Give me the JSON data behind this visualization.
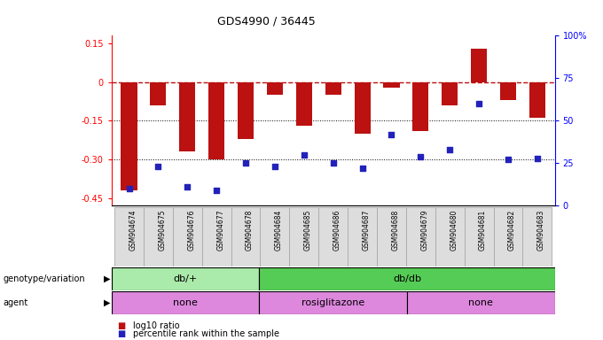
{
  "title": "GDS4990 / 36445",
  "samples": [
    "GSM904674",
    "GSM904675",
    "GSM904676",
    "GSM904677",
    "GSM904678",
    "GSM904684",
    "GSM904685",
    "GSM904686",
    "GSM904687",
    "GSM904688",
    "GSM904679",
    "GSM904680",
    "GSM904681",
    "GSM904682",
    "GSM904683"
  ],
  "log10_ratio": [
    -0.42,
    -0.09,
    -0.27,
    -0.3,
    -0.22,
    -0.05,
    -0.17,
    -0.05,
    -0.2,
    -0.02,
    -0.19,
    -0.09,
    0.13,
    -0.07,
    -0.14
  ],
  "percentile": [
    10,
    23,
    11,
    9,
    25,
    23,
    30,
    25,
    22,
    42,
    29,
    33,
    60,
    27,
    28
  ],
  "genotype_groups": [
    {
      "label": "db/+",
      "start": 0,
      "end": 5,
      "color": "#aaeaaa"
    },
    {
      "label": "db/db",
      "start": 5,
      "end": 15,
      "color": "#55cc55"
    }
  ],
  "agent_groups": [
    {
      "label": "none",
      "start": 0,
      "end": 5
    },
    {
      "label": "rosiglitazone",
      "start": 5,
      "end": 10
    },
    {
      "label": "none",
      "start": 10,
      "end": 15
    }
  ],
  "agent_color": "#dd88dd",
  "bar_color": "#bb1111",
  "dot_color": "#2222bb",
  "ylim_left": [
    -0.48,
    0.18
  ],
  "ylim_right": [
    0,
    100
  ],
  "left_ticks": [
    0.15,
    0.0,
    -0.15,
    -0.3,
    -0.45
  ],
  "left_tick_labels": [
    "0.15",
    "0",
    "-0.15",
    "-0.30",
    "-0.45"
  ],
  "right_ticks": [
    100,
    75,
    50,
    25,
    0
  ],
  "right_tick_labels": [
    "100%",
    "75",
    "50",
    "25",
    "0"
  ],
  "dotted_lines": [
    -0.15,
    -0.3
  ],
  "col_bg": "#dddddd",
  "col_border": "#aaaaaa"
}
